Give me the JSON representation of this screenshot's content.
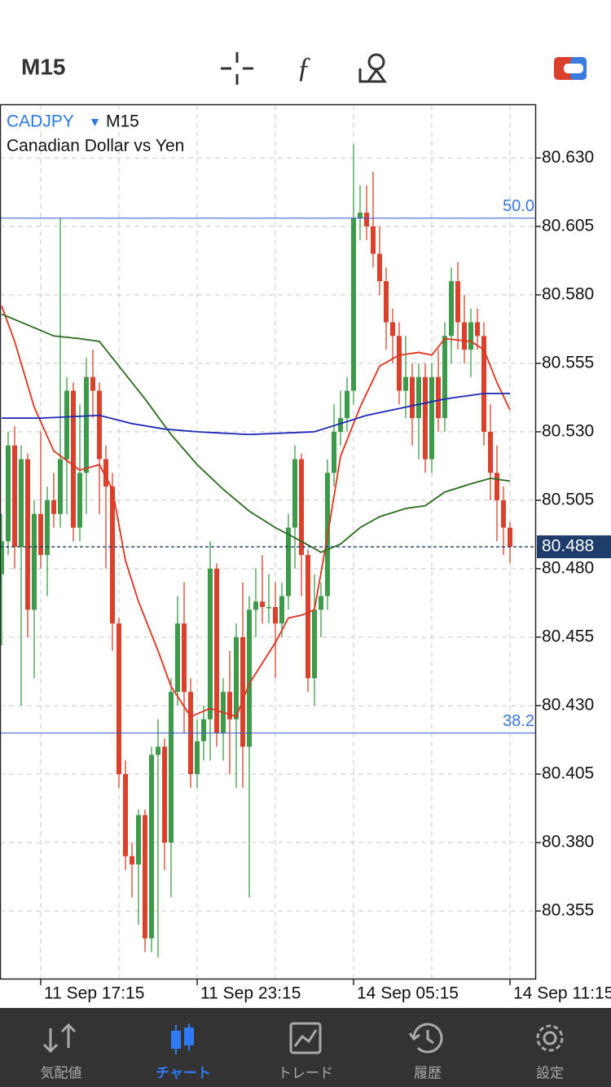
{
  "app": {
    "timeframe": "M15",
    "tabs": [
      "気配値",
      "チャート",
      "トレード",
      "履歴",
      "設定"
    ],
    "active_tab": 1
  },
  "chart_data": {
    "type": "candlestick",
    "symbol": "CADJPY",
    "timeframe": "M15",
    "description": "Canadian Dollar vs Yen",
    "categories": [
      null,
      null,
      null,
      null,
      null,
      null,
      "11 Sep 17:15",
      null,
      null,
      null,
      null,
      null,
      null,
      null,
      null,
      null,
      null,
      null,
      null,
      null,
      null,
      null,
      null,
      null,
      null,
      null,
      null,
      null,
      null,
      null,
      "11 Sep 23:15",
      null,
      null,
      null,
      null,
      null,
      null,
      null,
      null,
      null,
      null,
      null,
      null,
      null,
      null,
      null,
      null,
      null,
      null,
      null,
      null,
      null,
      null,
      null,
      "14 Sep 05:15",
      null,
      null,
      null,
      null,
      null,
      null,
      null,
      null,
      null,
      null,
      null,
      null,
      null,
      null,
      null,
      null,
      null,
      null,
      null,
      null,
      null,
      null,
      null,
      "14 Sep 11:15"
    ],
    "open": [
      80.478,
      80.49,
      80.525,
      80.488,
      80.52,
      80.465,
      80.5,
      80.485,
      80.505,
      80.5,
      80.52,
      80.545,
      80.495,
      80.515,
      80.55,
      80.545,
      80.52,
      80.51,
      80.46,
      80.405,
      80.375,
      80.372,
      80.39,
      80.345,
      80.412,
      80.415,
      80.38,
      80.435,
      80.46,
      80.435,
      80.405,
      80.417,
      80.425,
      80.48,
      80.42,
      80.435,
      80.425,
      80.455,
      80.415,
      80.465,
      80.468,
      80.466,
      80.466,
      80.46,
      80.47,
      80.495,
      80.52,
      80.485,
      80.44,
      80.465,
      80.47,
      80.515,
      80.53,
      80.535,
      80.545,
      80.608,
      80.61,
      80.605,
      80.595,
      80.585,
      80.57,
      80.565,
      80.545,
      80.55,
      80.535,
      80.55,
      80.52,
      80.55,
      80.535,
      80.565,
      80.585,
      80.57,
      80.56,
      80.57,
      80.565,
      80.53,
      80.515,
      80.505,
      80.495
    ],
    "high": [
      80.5,
      80.53,
      80.532,
      80.525,
      80.522,
      80.505,
      80.53,
      80.51,
      80.515,
      80.608,
      80.55,
      80.548,
      80.54,
      80.557,
      80.56,
      80.548,
      80.525,
      80.515,
      80.462,
      80.41,
      80.38,
      80.392,
      80.392,
      80.415,
      80.425,
      80.418,
      80.44,
      80.47,
      80.475,
      80.44,
      80.425,
      80.43,
      80.49,
      80.482,
      80.44,
      80.45,
      80.46,
      80.475,
      80.47,
      80.48,
      80.485,
      80.478,
      80.475,
      80.475,
      80.5,
      80.525,
      80.522,
      80.487,
      80.478,
      80.475,
      80.52,
      80.54,
      80.545,
      80.55,
      80.635,
      80.62,
      80.62,
      80.625,
      80.605,
      80.59,
      80.575,
      80.57,
      80.565,
      80.555,
      80.555,
      80.555,
      80.555,
      80.56,
      80.57,
      80.59,
      80.592,
      80.58,
      80.575,
      80.575,
      80.57,
      80.54,
      80.525,
      80.51,
      80.497
    ],
    "low": [
      80.452,
      80.485,
      80.48,
      80.43,
      80.455,
      80.44,
      80.48,
      80.47,
      80.495,
      80.495,
      80.5,
      80.49,
      80.49,
      80.5,
      80.535,
      80.5,
      80.48,
      80.45,
      80.4,
      80.37,
      80.36,
      80.35,
      80.34,
      80.34,
      80.338,
      80.37,
      80.36,
      80.43,
      80.42,
      80.4,
      80.4,
      80.41,
      80.41,
      80.415,
      80.41,
      80.405,
      80.4,
      80.4,
      80.36,
      80.455,
      80.46,
      80.46,
      80.44,
      80.455,
      80.465,
      80.48,
      80.47,
      80.435,
      80.43,
      80.455,
      80.465,
      80.51,
      80.525,
      80.53,
      80.54,
      80.6,
      80.6,
      80.59,
      80.58,
      80.56,
      80.555,
      80.54,
      80.535,
      80.525,
      80.52,
      80.515,
      80.515,
      80.53,
      80.53,
      80.555,
      80.56,
      80.555,
      80.55,
      80.56,
      80.525,
      80.505,
      80.49,
      80.485,
      80.482
    ],
    "close": [
      80.49,
      80.525,
      80.488,
      80.52,
      80.465,
      80.5,
      80.485,
      80.505,
      80.5,
      80.52,
      80.545,
      80.495,
      80.515,
      80.55,
      80.545,
      80.52,
      80.51,
      80.46,
      80.405,
      80.375,
      80.372,
      80.39,
      80.345,
      80.412,
      80.415,
      80.38,
      80.435,
      80.46,
      80.435,
      80.405,
      80.417,
      80.425,
      80.48,
      80.42,
      80.435,
      80.425,
      80.455,
      80.415,
      80.465,
      80.468,
      80.466,
      80.466,
      80.46,
      80.47,
      80.495,
      80.52,
      80.485,
      80.44,
      80.465,
      80.47,
      80.515,
      80.53,
      80.535,
      80.545,
      80.608,
      80.61,
      80.605,
      80.595,
      80.585,
      80.57,
      80.565,
      80.545,
      80.55,
      80.535,
      80.55,
      80.52,
      80.55,
      80.535,
      80.565,
      80.585,
      80.57,
      80.56,
      80.57,
      80.565,
      80.53,
      80.515,
      80.505,
      80.495,
      80.488
    ],
    "up_color": "#3d9a4b",
    "down_color": "#d9412c",
    "series": [
      {
        "color": "#e0321c",
        "x": [
          0,
          2,
          5,
          8,
          12,
          15,
          17,
          19,
          21,
          24,
          26,
          29,
          32,
          36,
          38,
          42,
          44,
          46,
          48,
          50,
          52,
          55,
          58,
          61,
          64,
          66,
          68,
          72,
          74,
          76,
          78
        ],
        "values": [
          80.576,
          80.563,
          80.539,
          80.523,
          80.516,
          80.518,
          80.509,
          80.483,
          80.468,
          80.45,
          80.437,
          80.426,
          80.429,
          80.426,
          80.438,
          80.453,
          80.462,
          80.463,
          80.465,
          80.492,
          80.521,
          80.539,
          80.554,
          80.558,
          80.559,
          80.558,
          80.564,
          80.563,
          80.56,
          80.548,
          80.538
        ]
      },
      {
        "color": "#2c6b1e",
        "x": [
          0,
          4,
          8,
          12,
          15,
          18,
          22,
          26,
          30,
          34,
          38,
          42,
          46,
          49,
          52,
          55,
          58,
          62,
          65,
          68,
          72,
          75,
          78
        ],
        "values": [
          80.573,
          80.569,
          80.565,
          80.564,
          80.563,
          80.554,
          80.542,
          80.529,
          80.518,
          80.509,
          80.501,
          80.495,
          80.49,
          80.486,
          80.489,
          80.495,
          80.499,
          80.502,
          80.503,
          80.508,
          80.511,
          80.513,
          80.512
        ]
      },
      {
        "color": "#1a27b5",
        "x": [
          0,
          6,
          15,
          20,
          25,
          30,
          38,
          48,
          52,
          56,
          62,
          68,
          74,
          78
        ],
        "values": [
          80.535,
          80.535,
          80.536,
          80.533,
          80.531,
          80.53,
          80.529,
          80.53,
          80.533,
          80.536,
          80.539,
          80.542,
          80.544,
          80.544
        ]
      }
    ],
    "levels": [
      {
        "label": "50.0",
        "value": 80.608,
        "color": "#3557d4"
      },
      {
        "label": "38.2",
        "value": 80.42,
        "color": "#3557d4"
      }
    ],
    "current_price": 80.488,
    "ylim": [
      80.3303,
      80.6493
    ],
    "yticks": [
      {
        "value": 80.63,
        "label": "80.630"
      },
      80.605,
      {
        "value": 80.58,
        "label": "80.580"
      },
      80.555,
      {
        "value": 80.53,
        "label": "80.530"
      },
      80.505,
      {
        "value": 80.48,
        "label": "80.480"
      },
      80.455,
      {
        "value": 80.43,
        "label": "80.430"
      },
      80.405,
      {
        "value": 80.38,
        "label": "80.380"
      },
      80.355
    ],
    "grid": true
  }
}
